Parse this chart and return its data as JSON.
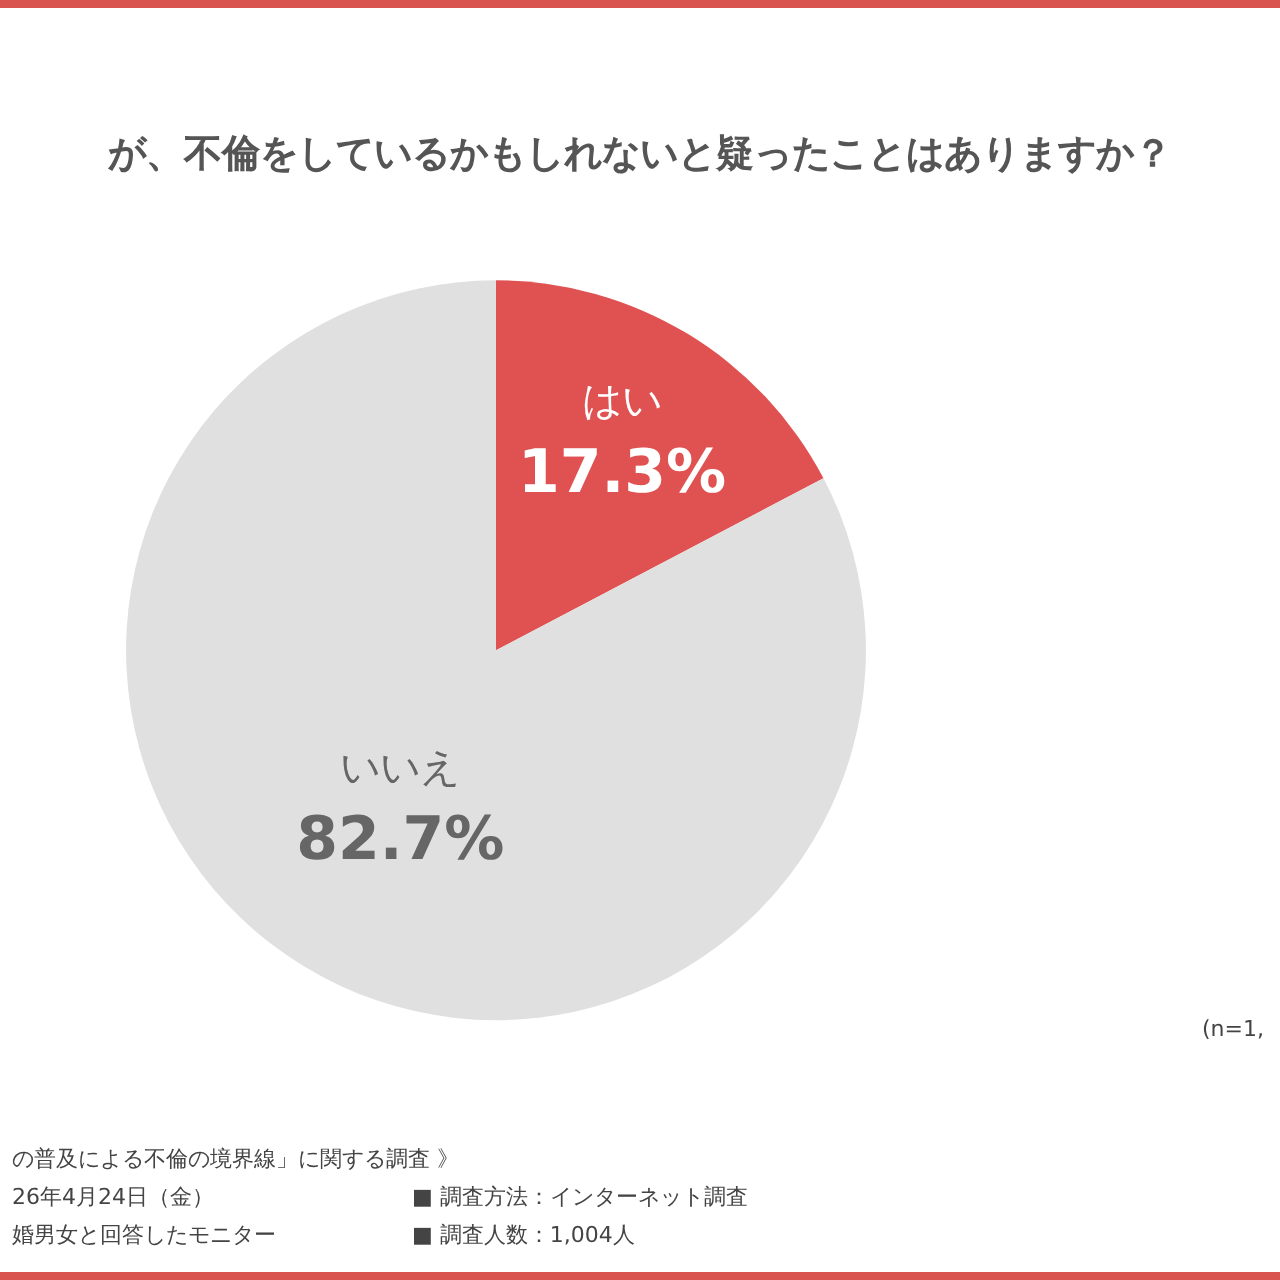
{
  "chart_data": {
    "type": "pie",
    "title": "が、不倫をしているかもしれないと疑ったことはありますか？",
    "categories": [
      "はい",
      "いいえ"
    ],
    "values": [
      17.3,
      82.7
    ],
    "value_labels": [
      "17.3%",
      "82.7%"
    ],
    "colors": [
      "#e05252",
      "#e0e0e0"
    ],
    "annotations": [
      "(n=1,",
      "の普及による不倫の境界線」に関する調査 》",
      "26年4月24日（金）",
      "■ 調査方法：インターネット調査",
      "婚男女と回答したモニター",
      "■ 調査人数：1,004人"
    ]
  }
}
